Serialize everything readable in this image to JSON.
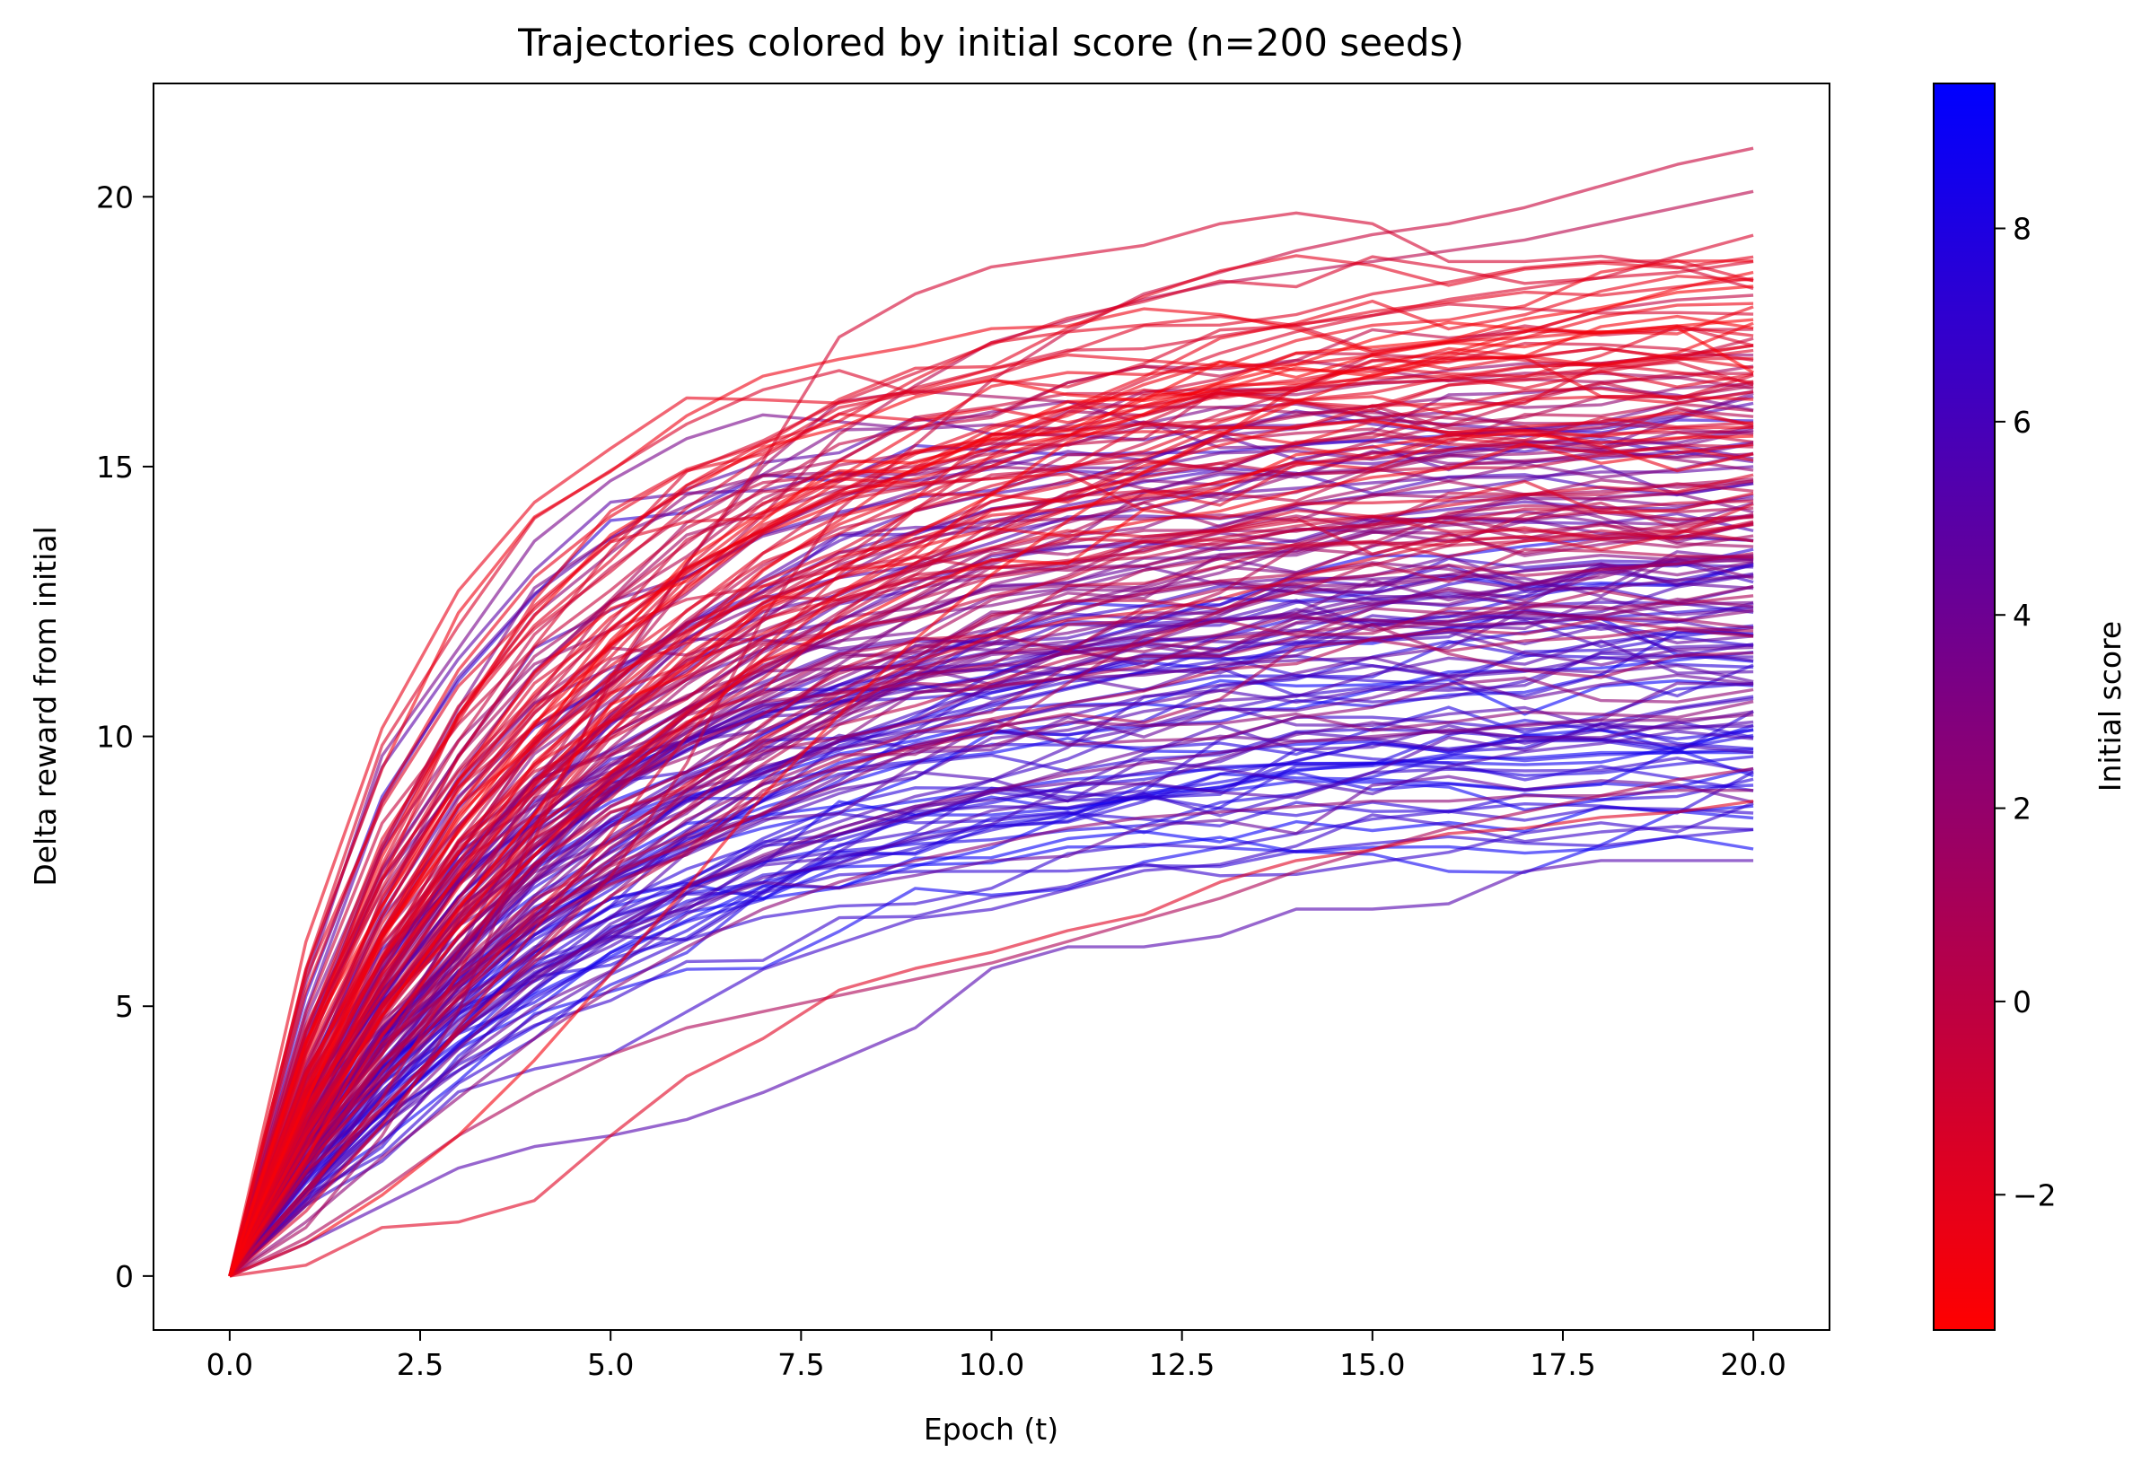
{
  "chart_data": {
    "type": "line",
    "title": "Trajectories colored by initial score (n=200 seeds)",
    "xlabel": "Epoch (t)",
    "ylabel": "Delta reward from initial",
    "xlim": [
      -1.0,
      21.0
    ],
    "ylim": [
      -1.0,
      22.1
    ],
    "x_ticks": [
      0.0,
      2.5,
      5.0,
      7.5,
      10.0,
      12.5,
      15.0,
      17.5,
      20.0
    ],
    "x_tick_labels": [
      "0.0",
      "2.5",
      "5.0",
      "7.5",
      "10.0",
      "12.5",
      "15.0",
      "17.5",
      "20.0"
    ],
    "y_ticks": [
      0,
      5,
      10,
      15,
      20
    ],
    "y_tick_labels": [
      "0",
      "5",
      "10",
      "15",
      "20"
    ],
    "grid": false,
    "legend": "none",
    "n_series": 200,
    "line_alpha": 0.6,
    "epochs": [
      0,
      1,
      2,
      3,
      4,
      5,
      6,
      7,
      8,
      9,
      10,
      11,
      12,
      13,
      14,
      15,
      16,
      17,
      18,
      19,
      20
    ],
    "colorbar": {
      "label": "Initial score",
      "range": [
        -3.4,
        9.5
      ],
      "ticks": [
        -2,
        0,
        2,
        4,
        6,
        8
      ],
      "tick_labels": [
        "−2",
        "0",
        "2",
        "4",
        "6",
        "8"
      ],
      "color_low": "#ff0000",
      "color_high": "#0000ff"
    },
    "series": [
      {
        "initial_score": -1.5,
        "values": [
          0,
          1.2,
          2.8,
          4.6,
          6.4,
          8.2,
          10.0,
          11.6,
          13.0,
          14.2,
          15.2,
          16.0,
          16.6,
          17.1,
          17.5,
          17.8,
          18.1,
          18.3,
          18.5,
          18.6,
          18.8
        ]
      },
      {
        "initial_score": -2.8,
        "values": [
          0,
          0.6,
          1.5,
          2.6,
          4.0,
          5.6,
          7.2,
          8.9,
          10.4,
          11.8,
          13.0,
          14.0,
          14.9,
          15.6,
          16.2,
          16.7,
          17.1,
          17.5,
          17.9,
          18.3,
          18.6
        ]
      },
      {
        "initial_score": 7.6,
        "values": [
          0,
          3.3,
          4.6,
          6.0,
          7.2,
          8.1,
          8.8,
          9.4,
          9.9,
          10.3,
          10.6,
          10.9,
          11.2,
          11.4,
          11.6,
          11.8,
          12.0,
          12.1,
          12.2,
          12.3,
          12.4
        ]
      },
      {
        "initial_score": 4.8,
        "values": [
          0,
          1.4,
          3.6,
          6.0,
          8.6,
          10.4,
          11.8,
          12.7,
          13.4,
          13.8,
          14.0,
          14.2,
          14.4,
          14.5,
          14.6,
          14.7,
          14.8,
          14.8,
          14.9,
          14.9,
          15.0
        ]
      },
      {
        "initial_score": 1.2,
        "values": [
          0,
          0.9,
          2.6,
          4.9,
          8.3,
          11.0,
          13.2,
          15.0,
          16.2,
          16.4,
          16.3,
          16.2,
          16.1,
          16.1,
          16.0,
          16.0,
          15.9,
          15.8,
          15.8,
          15.7,
          15.6
        ]
      },
      {
        "initial_score": 5.4,
        "values": [
          0,
          0.6,
          1.3,
          2.0,
          2.4,
          2.6,
          2.9,
          3.4,
          4.0,
          4.6,
          5.7,
          6.1,
          6.1,
          6.3,
          6.8,
          6.8,
          6.9,
          7.5,
          7.7,
          7.7,
          7.7
        ]
      },
      {
        "initial_score": -1.8,
        "values": [
          0,
          0.2,
          0.9,
          1.0,
          1.4,
          2.6,
          3.7,
          4.4,
          5.3,
          5.7,
          6.0,
          6.4,
          6.7,
          7.3,
          7.7,
          7.9,
          8.2,
          8.3,
          8.5,
          8.6,
          8.8
        ]
      },
      {
        "initial_score": -0.5,
        "values": [
          0,
          1.6,
          3.1,
          4.5,
          5.9,
          7.4,
          9.5,
          12.2,
          14.2,
          15.4,
          16.6,
          17.5,
          18.2,
          18.6,
          19.0,
          19.3,
          19.5,
          19.8,
          20.2,
          20.6,
          20.9
        ]
      },
      {
        "initial_score": 0.2,
        "values": [
          0,
          1.9,
          4.1,
          6.6,
          9.1,
          11.1,
          12.8,
          14.1,
          15.6,
          16.5,
          17.3,
          17.7,
          18.1,
          18.4,
          18.6,
          18.8,
          19.0,
          19.2,
          19.5,
          19.8,
          20.1
        ]
      },
      {
        "initial_score": -1.1,
        "values": [
          0,
          1.5,
          3.3,
          5.6,
          8.1,
          11.1,
          13.2,
          15.1,
          17.4,
          18.2,
          18.7,
          18.9,
          19.1,
          19.5,
          19.7,
          19.5,
          18.8,
          18.8,
          18.9,
          18.7,
          18.3
        ]
      },
      {
        "initial_score": 3.2,
        "values": [
          0,
          1.3,
          2.8,
          4.2,
          5.5,
          6.4,
          7.2,
          7.8,
          8.3,
          8.7,
          9.0,
          9.3,
          9.5,
          9.7,
          9.9,
          10.0,
          10.1,
          10.2,
          10.3,
          10.3,
          10.4
        ]
      },
      {
        "initial_score": 8.9,
        "values": [
          0,
          2.4,
          4.2,
          5.6,
          6.6,
          7.3,
          7.9,
          8.3,
          8.6,
          8.8,
          9.0,
          9.2,
          9.3,
          9.4,
          9.5,
          9.5,
          9.6,
          9.6,
          9.7,
          9.7,
          9.7
        ]
      },
      {
        "initial_score": 2.4,
        "values": [
          0,
          1.0,
          2.2,
          3.3,
          4.4,
          5.3,
          6.1,
          6.8,
          7.3,
          7.7,
          8.0,
          8.3,
          8.5,
          8.6,
          8.7,
          8.8,
          8.8,
          8.9,
          8.9,
          9.0,
          9.0
        ]
      },
      {
        "initial_score": 0.8,
        "values": [
          0,
          0.7,
          1.6,
          2.6,
          3.4,
          4.1,
          4.6,
          4.9,
          5.2,
          5.5,
          5.8,
          6.2,
          6.6,
          7.0,
          7.5,
          7.9,
          8.3,
          8.6,
          8.9,
          9.2,
          9.4
        ]
      }
    ]
  }
}
